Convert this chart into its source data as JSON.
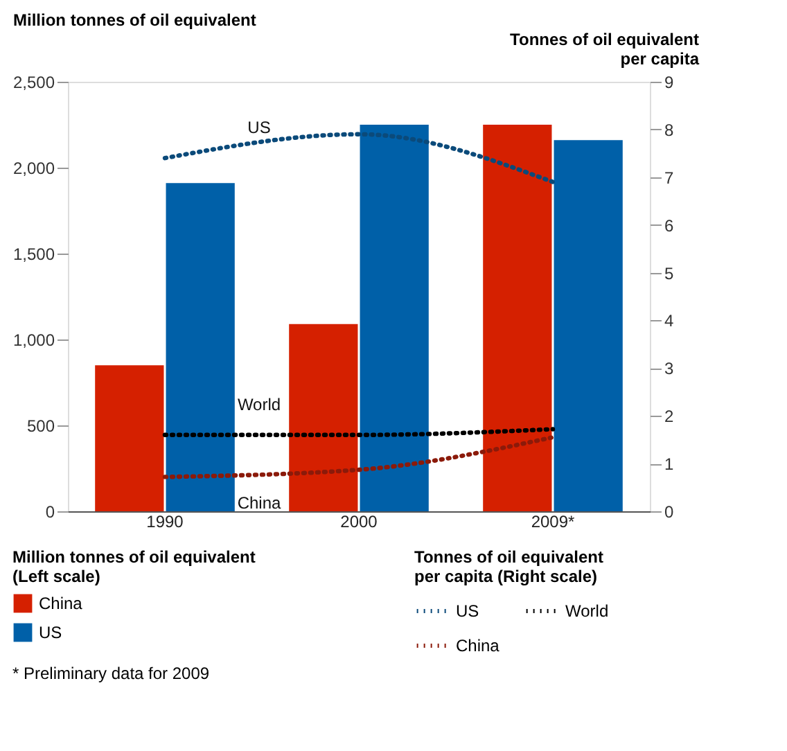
{
  "chart_data": {
    "type": "bar",
    "categories": [
      "1990",
      "2000",
      "2009*"
    ],
    "series": [
      {
        "name": "China",
        "color": "#d52000",
        "values": [
          850,
          1090,
          2250
        ]
      },
      {
        "name": "US",
        "color": "#0060a8",
        "values": [
          1910,
          2250,
          2160
        ]
      },
      {
        "name": "US",
        "type": "line",
        "axis": "y2",
        "line_style": "dotted",
        "color": "#0b4a7a",
        "values": [
          7.4,
          7.9,
          6.9
        ]
      },
      {
        "name": "China",
        "type": "line",
        "axis": "y2",
        "line_style": "dotted",
        "color": "#8b1a0a",
        "values": [
          0.72,
          0.87,
          1.55
        ]
      },
      {
        "name": "World",
        "type": "line",
        "axis": "y2",
        "line_style": "dotted",
        "color": "#000000",
        "values": [
          1.6,
          1.6,
          1.72
        ]
      }
    ],
    "ylabel": "Million tonnes of oil equivalent",
    "y2label": "Tonnes of oil equivalent per capita",
    "legend_title": "Million tonnes of oil equivalent (Left scale)",
    "annotations": [
      "Tonnes of oil equivalent per capita (Right scale)",
      "* Preliminary data for 2009"
    ],
    "ylim": [
      0,
      2500
    ],
    "yticks": [
      0,
      500,
      {
        "value": 1000,
        "label": "1,000"
      },
      {
        "value": 1500,
        "label": "1,500"
      },
      {
        "value": 2000,
        "label": "2,000"
      },
      {
        "value": 2500,
        "label": "2,500"
      }
    ],
    "y2lim": [
      0,
      9
    ],
    "y2ticks": [
      0,
      1,
      2,
      3,
      4,
      5,
      6,
      7,
      8,
      9
    ],
    "grid": false,
    "legend": "bottom"
  }
}
